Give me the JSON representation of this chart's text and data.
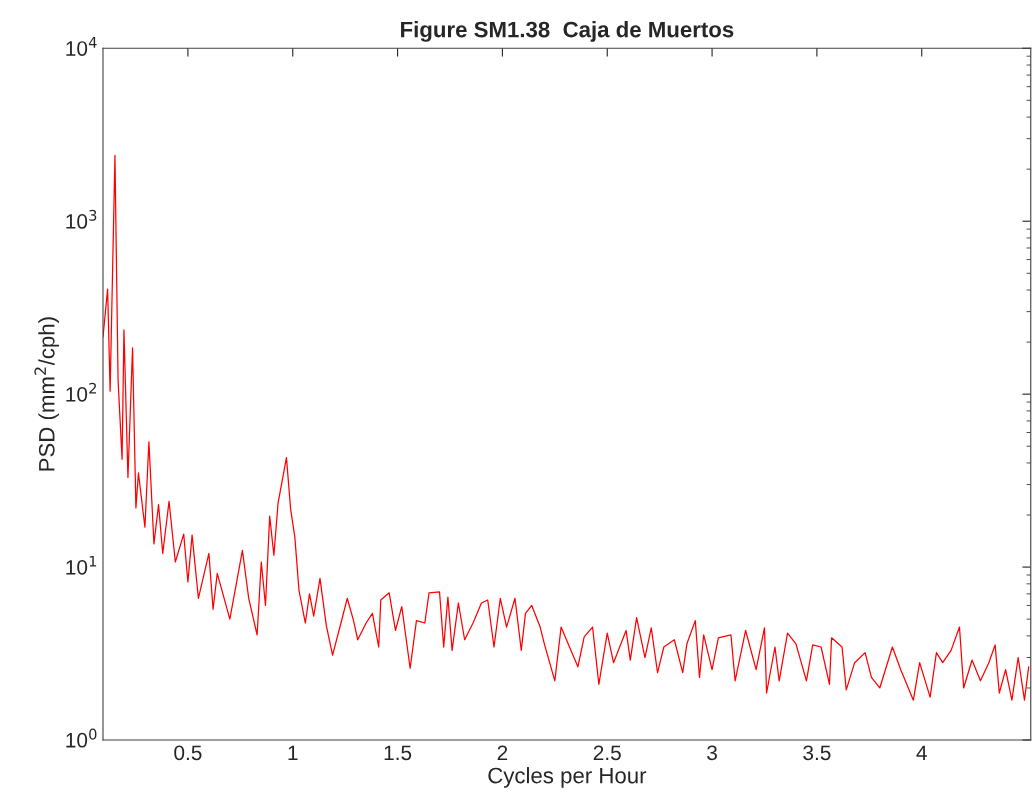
{
  "chart_data": {
    "type": "line",
    "title": "Figure SM1.38  Caja de Muertos",
    "xlabel": "Cycles per Hour",
    "ylabel": "PSD (mm$^{2}$/cph)",
    "log": "y",
    "grid": false,
    "legend": false,
    "marker": "none",
    "line_style": "solid",
    "xlim": [
      0.095,
      4.52
    ],
    "xticks": [
      0.5,
      1,
      1.5,
      2,
      2.5,
      3,
      3.5,
      4
    ],
    "ylim": [
      1,
      10000
    ],
    "yticks": [
      {
        "value": 1,
        "label": "10$^{0}$"
      },
      {
        "value": 10,
        "label": "10$^{1}$"
      },
      {
        "value": 100,
        "label": "10$^{2}$"
      },
      {
        "value": 1000,
        "label": "10$^{3}$"
      },
      {
        "value": 10000,
        "label": "10$^{4}$"
      }
    ],
    "series": [
      {
        "color": "#ff0000",
        "x": [
          0.095,
          0.117,
          0.129,
          0.152,
          0.167,
          0.186,
          0.195,
          0.214,
          0.236,
          0.252,
          0.264,
          0.295,
          0.314,
          0.338,
          0.36,
          0.38,
          0.41,
          0.44,
          0.48,
          0.5,
          0.52,
          0.55,
          0.6,
          0.62,
          0.64,
          0.7,
          0.76,
          0.79,
          0.83,
          0.85,
          0.87,
          0.89,
          0.91,
          0.93,
          0.97,
          0.99,
          1.01,
          1.03,
          1.06,
          1.08,
          1.1,
          1.13,
          1.16,
          1.19,
          1.23,
          1.26,
          1.29,
          1.31,
          1.35,
          1.38,
          1.41,
          1.42,
          1.46,
          1.49,
          1.52,
          1.56,
          1.59,
          1.63,
          1.65,
          1.7,
          1.72,
          1.74,
          1.76,
          1.79,
          1.82,
          1.86,
          1.9,
          1.93,
          1.96,
          1.99,
          2.02,
          2.06,
          2.09,
          2.11,
          2.14,
          2.18,
          2.2,
          2.25,
          2.28,
          2.32,
          2.36,
          2.39,
          2.43,
          2.46,
          2.5,
          2.53,
          2.59,
          2.61,
          2.64,
          2.68,
          2.71,
          2.74,
          2.77,
          2.82,
          2.86,
          2.88,
          2.92,
          2.94,
          2.96,
          3.0,
          3.03,
          3.09,
          3.11,
          3.16,
          3.21,
          3.25,
          3.26,
          3.3,
          3.32,
          3.36,
          3.4,
          3.45,
          3.48,
          3.52,
          3.56,
          3.57,
          3.62,
          3.64,
          3.68,
          3.73,
          3.76,
          3.8,
          3.86,
          3.9,
          3.96,
          3.99,
          4.04,
          4.07,
          4.1,
          4.14,
          4.18,
          4.2,
          4.24,
          4.28,
          4.32,
          4.35,
          4.37,
          4.4,
          4.43,
          4.46,
          4.49,
          4.51
        ],
        "values": [
          214,
          405,
          104,
          2400,
          120,
          42,
          235,
          33,
          185,
          22,
          35,
          17,
          53,
          13.6,
          23,
          12,
          24,
          10.7,
          15.5,
          8.2,
          15.3,
          6.6,
          12,
          5.7,
          9.2,
          5.0,
          12.5,
          6.6,
          4.05,
          10.7,
          6.0,
          19.7,
          11.7,
          23.4,
          43,
          21.6,
          14.9,
          7.3,
          4.75,
          7.0,
          5.2,
          8.6,
          4.6,
          3.1,
          4.75,
          6.6,
          4.9,
          3.8,
          4.75,
          5.4,
          3.45,
          6.45,
          7.1,
          4.3,
          5.9,
          2.6,
          4.9,
          4.75,
          7.1,
          7.2,
          3.45,
          6.7,
          3.3,
          6.2,
          3.8,
          4.75,
          6.2,
          6.45,
          3.45,
          6.6,
          4.5,
          6.6,
          3.3,
          5.4,
          6.0,
          4.5,
          3.6,
          2.2,
          4.5,
          3.45,
          2.65,
          3.95,
          4.5,
          2.1,
          4.15,
          2.8,
          4.3,
          2.9,
          5.1,
          3.0,
          4.45,
          2.45,
          3.45,
          3.8,
          2.45,
          3.6,
          4.9,
          2.3,
          4.05,
          2.55,
          3.9,
          4.05,
          2.2,
          4.3,
          2.55,
          4.45,
          1.87,
          3.45,
          2.2,
          4.15,
          3.6,
          2.2,
          3.55,
          3.45,
          2.1,
          3.9,
          3.45,
          1.95,
          2.8,
          3.2,
          2.3,
          2.0,
          3.45,
          2.55,
          1.7,
          2.8,
          1.77,
          3.2,
          2.8,
          3.3,
          4.5,
          2.0,
          2.9,
          2.2,
          2.8,
          3.55,
          1.87,
          2.55,
          1.7,
          3.0,
          1.7,
          2.65
        ]
      }
    ]
  }
}
